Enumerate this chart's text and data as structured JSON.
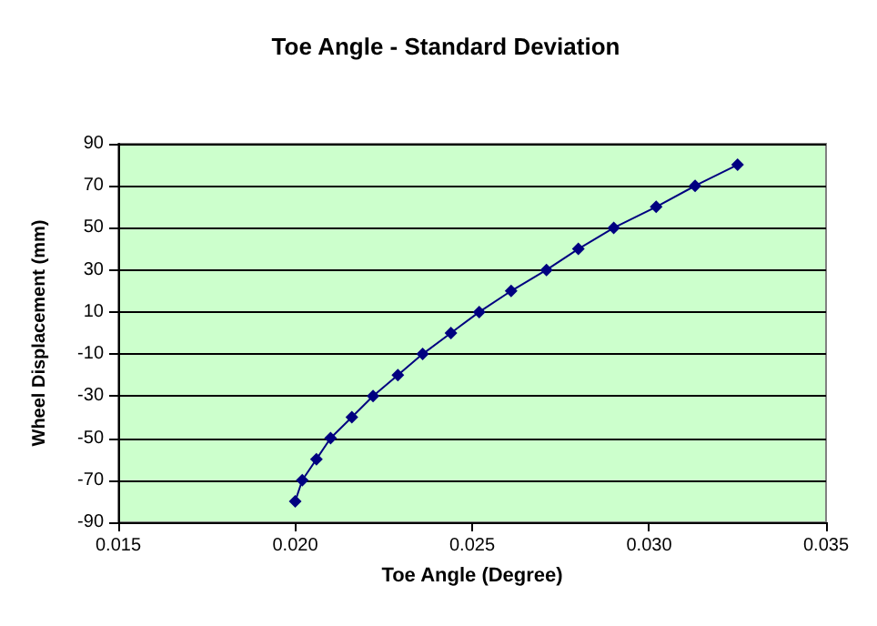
{
  "chart_data": {
    "type": "line",
    "title": "Toe Angle - Standard Deviation",
    "xlabel": "Toe Angle (Degree)",
    "ylabel": "Wheel Displacement (mm)",
    "x": [
      0.02,
      0.0202,
      0.0206,
      0.021,
      0.0216,
      0.0222,
      0.0229,
      0.0236,
      0.0244,
      0.0252,
      0.0261,
      0.0271,
      0.028,
      0.029,
      0.0302,
      0.0313,
      0.0325
    ],
    "series": [
      {
        "color": "#000080",
        "values": [
          -80,
          -70,
          -60,
          -50,
          -40,
          -30,
          -20,
          -10,
          0,
          10,
          20,
          30,
          40,
          50,
          60,
          70,
          80
        ]
      }
    ],
    "xlim": [
      0.015,
      0.035
    ],
    "xticks": [
      {
        "value": 0.015,
        "label": "0.015"
      },
      {
        "value": 0.02,
        "label": "0.020"
      },
      {
        "value": 0.025,
        "label": "0.025"
      },
      {
        "value": 0.03,
        "label": "0.030"
      },
      {
        "value": 0.035,
        "label": "0.035"
      }
    ],
    "ylim": [
      -90,
      90
    ],
    "yticks": [
      -90,
      -70,
      -50,
      -30,
      -10,
      10,
      30,
      50,
      70,
      90
    ],
    "grid": "y",
    "marker": "diamond",
    "line_style": "solid"
  }
}
